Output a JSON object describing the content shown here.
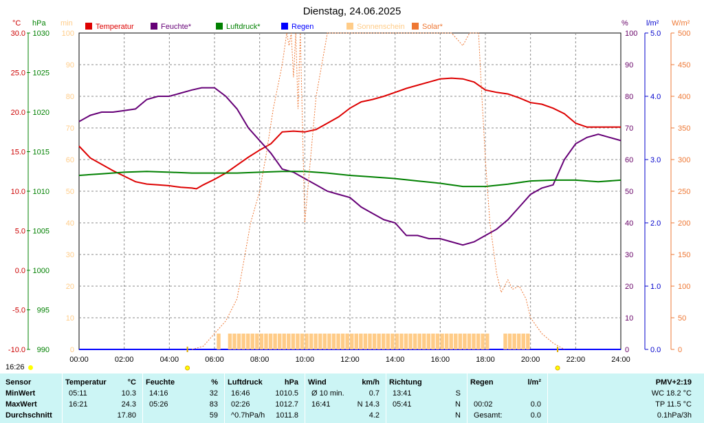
{
  "chart_data": {
    "type": "line",
    "title": "Dienstag, 24.06.2025",
    "x_ticks": [
      "00:00",
      "02:00",
      "04:00",
      "06:00",
      "08:00",
      "10:00",
      "12:00",
      "14:00",
      "16:00",
      "18:00",
      "20:00",
      "22:00",
      "24:00"
    ],
    "x_range_hours": [
      0,
      24
    ],
    "grid": true,
    "legend_position": "top",
    "axes": {
      "temperature": {
        "unit": "°C",
        "range": [
          -10,
          30
        ],
        "ticks": [
          "30.0",
          "25.0",
          "20.0",
          "15.0",
          "10.0",
          "5.0",
          "0.0",
          "-5.0",
          "-10.0"
        ],
        "color": "#cc0000"
      },
      "pressure": {
        "unit": "hPa",
        "range": [
          990,
          1030
        ],
        "ticks": [
          "1030",
          "1025",
          "1020",
          "1015",
          "1010",
          "1005",
          "1000",
          "995",
          "990"
        ],
        "color": "#008000"
      },
      "sunshine": {
        "unit": "min",
        "range": [
          0,
          100
        ],
        "ticks": [
          "100",
          "90",
          "80",
          "70",
          "60",
          "50",
          "40",
          "30",
          "20",
          "10",
          "0"
        ],
        "color": "#ffcc88"
      },
      "humidity": {
        "unit": "%",
        "range": [
          0,
          100
        ],
        "ticks": [
          "100",
          "90",
          "80",
          "70",
          "60",
          "50",
          "40",
          "30",
          "20",
          "10",
          "0"
        ],
        "color": "#660066"
      },
      "rain": {
        "unit": "l/m²",
        "range": [
          0,
          5
        ],
        "ticks": [
          "5.0",
          "4.0",
          "3.0",
          "2.0",
          "1.0",
          "0.0"
        ],
        "color": "#0000cc"
      },
      "solar": {
        "unit": "W/m²",
        "range": [
          0,
          500
        ],
        "ticks": [
          "500",
          "450",
          "400",
          "350",
          "300",
          "250",
          "200",
          "150",
          "100",
          "50",
          "0"
        ],
        "color": "#ee7733"
      }
    },
    "series": [
      {
        "name": "Temperatur",
        "color": "#dd0000",
        "axis": "temperature",
        "x": [
          0,
          0.5,
          1,
          1.5,
          2,
          2.5,
          3,
          3.5,
          4,
          4.5,
          5,
          5.2,
          5.5,
          6,
          6.5,
          7,
          7.5,
          8,
          8.5,
          9,
          9.5,
          10,
          10.5,
          11,
          11.5,
          12,
          12.5,
          13,
          13.5,
          14,
          14.5,
          15,
          15.5,
          16,
          16.5,
          17,
          17.5,
          18,
          18.5,
          19,
          19.5,
          20,
          20.5,
          21,
          21.5,
          22,
          22.5,
          23,
          23.5,
          24
        ],
        "y": [
          15.7,
          14.2,
          13.4,
          12.6,
          11.9,
          11.2,
          10.9,
          10.8,
          10.7,
          10.5,
          10.4,
          10.3,
          10.8,
          11.5,
          12.3,
          13.3,
          14.3,
          15.2,
          16.0,
          17.5,
          17.6,
          17.5,
          17.8,
          18.6,
          19.4,
          20.5,
          21.3,
          21.6,
          22.0,
          22.5,
          23.0,
          23.4,
          23.8,
          24.2,
          24.3,
          24.2,
          23.8,
          22.8,
          22.5,
          22.3,
          21.8,
          21.2,
          21.0,
          20.5,
          19.8,
          18.6,
          18.1,
          18.1,
          18.1,
          18.1
        ]
      },
      {
        "name": "Feuchte*",
        "color": "#660077",
        "axis": "humidity",
        "x": [
          0,
          0.5,
          1,
          1.5,
          2,
          2.5,
          3,
          3.5,
          4,
          4.5,
          5,
          5.43,
          6,
          6.5,
          7,
          7.5,
          8,
          8.5,
          9,
          9.5,
          10,
          10.5,
          11,
          11.5,
          12,
          12.5,
          13,
          13.5,
          14,
          14.5,
          15,
          15.5,
          16,
          16.5,
          17,
          17.5,
          18,
          18.5,
          19,
          19.5,
          20,
          20.5,
          21,
          21.5,
          22,
          22.5,
          23,
          23.5,
          24
        ],
        "y": [
          72,
          74,
          75,
          75,
          75.5,
          76,
          79,
          80,
          80,
          81,
          82,
          82.7,
          82.7,
          80,
          76,
          70,
          66,
          62,
          57,
          56,
          54,
          52,
          50,
          49,
          48,
          45,
          43,
          41,
          40,
          36,
          36,
          35,
          35,
          34,
          33,
          34,
          36,
          38,
          41,
          45,
          49,
          51,
          52,
          60,
          65,
          67,
          68,
          67,
          66
        ]
      },
      {
        "name": "Luftdruck*",
        "color": "#008000",
        "axis": "pressure",
        "x": [
          0,
          1,
          2,
          3,
          4,
          5,
          6,
          7,
          8,
          9,
          10,
          11,
          12,
          13,
          14,
          15,
          16,
          17,
          18,
          19,
          20,
          21,
          22,
          23,
          24
        ],
        "y": [
          1012.0,
          1012.2,
          1012.4,
          1012.5,
          1012.4,
          1012.3,
          1012.3,
          1012.3,
          1012.4,
          1012.5,
          1012.5,
          1012.3,
          1012.0,
          1011.8,
          1011.6,
          1011.3,
          1011.0,
          1010.6,
          1010.6,
          1010.9,
          1011.3,
          1011.4,
          1011.4,
          1011.2,
          1011.4
        ]
      },
      {
        "name": "Regen",
        "color": "#0000ff",
        "axis": "rain",
        "x": [
          0,
          24
        ],
        "y": [
          0,
          0
        ]
      },
      {
        "name": "Sonnenschein",
        "color": "#ffcc88",
        "axis": "sunshine",
        "x": [
          6.1,
          6.6,
          6.8,
          7.0,
          7.2,
          7.4,
          7.6,
          7.8,
          8.0,
          8.2,
          8.4,
          8.6,
          8.8,
          9.0,
          9.2,
          9.4,
          9.6,
          9.8,
          10.0,
          10.2,
          10.4,
          10.6,
          10.8,
          11.0,
          11.2,
          11.4,
          11.6,
          11.8,
          12.0,
          12.2,
          12.4,
          12.6,
          12.8,
          13.0,
          13.2,
          13.4,
          13.6,
          13.8,
          14.0,
          14.2,
          14.4,
          14.6,
          14.8,
          15.0,
          15.2,
          15.4,
          15.6,
          15.8,
          16.0,
          16.2,
          16.4,
          16.6,
          16.8,
          17.0,
          17.2,
          17.4,
          17.6,
          17.8,
          18.0,
          18.8,
          19.0,
          19.2,
          19.4,
          19.6,
          19.8
        ],
        "y": [
          5,
          5,
          5,
          5,
          5,
          5,
          5,
          5,
          5,
          5,
          5,
          5,
          5,
          5,
          5,
          5,
          5,
          5,
          5,
          5,
          5,
          5,
          5,
          5,
          5,
          5,
          5,
          5,
          5,
          5,
          5,
          5,
          5,
          5,
          5,
          5,
          5,
          5,
          5,
          5,
          5,
          5,
          5,
          5,
          5,
          5,
          5,
          5,
          5,
          5,
          5,
          5,
          5,
          5,
          5,
          5,
          5,
          5,
          5,
          5,
          5,
          5,
          5,
          5,
          5
        ]
      },
      {
        "name": "Solar*",
        "color": "#ee7733",
        "axis": "solar",
        "x": [
          5.0,
          5.5,
          6.0,
          6.5,
          7.0,
          7.3,
          7.6,
          8.0,
          8.3,
          8.6,
          9.0,
          9.2,
          9.3,
          9.4,
          9.5,
          9.6,
          9.7,
          9.8,
          10.0,
          10.5,
          11,
          12,
          13,
          14,
          15,
          15.8,
          16,
          16.5,
          17,
          17.3,
          17.5,
          17.7,
          17.8,
          18.0,
          18.2,
          18.5,
          18.7,
          19.0,
          19.2,
          19.5,
          19.8,
          20.0,
          20.5,
          21.0,
          21.5
        ],
        "y": [
          0,
          5,
          25,
          45,
          80,
          140,
          200,
          250,
          310,
          380,
          450,
          500,
          480,
          520,
          430,
          520,
          380,
          520,
          200,
          400,
          520,
          520,
          520,
          520,
          520,
          520,
          520,
          500,
          480,
          520,
          510,
          500,
          430,
          300,
          200,
          120,
          90,
          110,
          95,
          100,
          80,
          50,
          25,
          10,
          0
        ]
      }
    ],
    "sun_markers": {
      "sunrise": "04:48",
      "sunset": "21:12"
    }
  },
  "stats": {
    "current_time": "16:26",
    "headers": {
      "sensor": "Sensor",
      "temp": "Temperatur",
      "temp_unit": "°C",
      "hum": "Feuchte",
      "hum_unit": "%",
      "press": "Luftdruck",
      "press_unit": "hPa",
      "wind": "Wind",
      "wind_unit": "km/h",
      "dir": "Richtung",
      "rain": "Regen",
      "rain_unit": "l/m²",
      "pmv": "PMV+2:19"
    },
    "rows": [
      {
        "label": "MinWert",
        "temp_time": "05:11",
        "temp_val": "10.3",
        "hum_time": "14:16",
        "hum_val": "32",
        "press_time": "16:46",
        "press_val": "1010.5",
        "wind_time": "Ø 10 min.",
        "wind_val": "0.7",
        "dir_time": "13:41",
        "dir_val": "S",
        "rain_time": "",
        "rain_val": "",
        "pmv": "WC 18.2 °C"
      },
      {
        "label": "MaxWert",
        "temp_time": "16:21",
        "temp_val": "24.3",
        "hum_time": "05:26",
        "hum_val": "83",
        "press_time": "02:26",
        "press_val": "1012.7",
        "wind_time": "16:41",
        "wind_val": "N 14.3",
        "dir_time": "05:41",
        "dir_val": "N",
        "rain_time": "00:02",
        "rain_val": "0.0",
        "pmv": "TP 11.5 °C"
      },
      {
        "label": "Durchschnitt",
        "temp_time": "",
        "temp_val": "17.80",
        "hum_time": "",
        "hum_val": "59",
        "press_time": "^0.7hPa/h",
        "press_val": "1011.8",
        "wind_time": "",
        "wind_val": "4.2",
        "dir_time": "",
        "dir_val": "N",
        "rain_time": "Gesamt:",
        "rain_val": "0.0",
        "pmv": "0.1hPa/3h"
      }
    ]
  }
}
